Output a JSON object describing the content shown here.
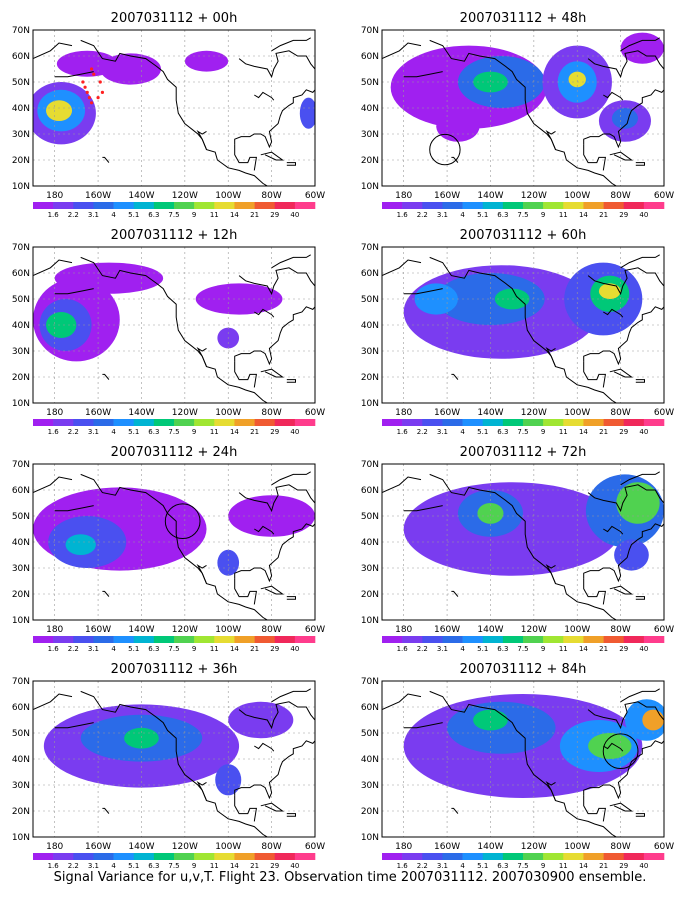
{
  "panels": [
    {
      "title": "2007031112 + 00h",
      "lead": "00h",
      "column": "left",
      "blobs": [
        {
          "lon": -177,
          "lat": 38,
          "rx": 16,
          "ry": 12,
          "level": 1
        },
        {
          "lon": -177,
          "lat": 39,
          "rx": 11,
          "ry": 8,
          "level": 4
        },
        {
          "lon": -178,
          "lat": 39,
          "rx": 6,
          "ry": 4,
          "level": 9
        },
        {
          "lon": -165,
          "lat": 57,
          "rx": 14,
          "ry": 5,
          "level": 0
        },
        {
          "lon": -145,
          "lat": 55,
          "rx": 14,
          "ry": 6,
          "level": 0
        },
        {
          "lon": -110,
          "lat": 58,
          "rx": 10,
          "ry": 4,
          "level": 0
        },
        {
          "lon": -63,
          "lat": 38,
          "rx": 4,
          "ry": 6,
          "level": 2
        }
      ],
      "target_points": [
        [
          -167,
          50
        ],
        [
          -166,
          48
        ],
        [
          -165,
          46
        ],
        [
          -164,
          44
        ],
        [
          -163,
          42
        ],
        [
          -160,
          44
        ],
        [
          -158,
          46
        ],
        [
          -159,
          50
        ],
        [
          -162,
          53
        ],
        [
          -163,
          55
        ]
      ],
      "circle": null
    },
    {
      "title": "2007031112 + 48h",
      "lead": "48h",
      "column": "right",
      "blobs": [
        {
          "lon": -150,
          "lat": 48,
          "rx": 36,
          "ry": 16,
          "level": 0
        },
        {
          "lon": -135,
          "lat": 50,
          "rx": 20,
          "ry": 10,
          "level": 3
        },
        {
          "lon": -140,
          "lat": 50,
          "rx": 8,
          "ry": 4,
          "level": 6
        },
        {
          "lon": -100,
          "lat": 50,
          "rx": 16,
          "ry": 14,
          "level": 1
        },
        {
          "lon": -100,
          "lat": 50,
          "rx": 9,
          "ry": 8,
          "level": 4
        },
        {
          "lon": -100,
          "lat": 51,
          "rx": 4,
          "ry": 3,
          "level": 9
        },
        {
          "lon": -155,
          "lat": 33,
          "rx": 10,
          "ry": 6,
          "level": 0
        },
        {
          "lon": -78,
          "lat": 35,
          "rx": 12,
          "ry": 8,
          "level": 1
        },
        {
          "lon": -78,
          "lat": 36,
          "rx": 6,
          "ry": 4,
          "level": 3
        },
        {
          "lon": -70,
          "lat": 63,
          "rx": 10,
          "ry": 6,
          "level": 0
        }
      ],
      "target_points": [],
      "circle": {
        "lon": -161,
        "lat": 24,
        "r": 7
      }
    },
    {
      "title": "2007031112 + 12h",
      "lead": "12h",
      "column": "left",
      "blobs": [
        {
          "lon": -170,
          "lat": 42,
          "rx": 20,
          "ry": 16,
          "level": 0
        },
        {
          "lon": -175,
          "lat": 40,
          "rx": 12,
          "ry": 10,
          "level": 2
        },
        {
          "lon": -177,
          "lat": 40,
          "rx": 7,
          "ry": 5,
          "level": 6
        },
        {
          "lon": -155,
          "lat": 58,
          "rx": 25,
          "ry": 6,
          "level": 0
        },
        {
          "lon": -95,
          "lat": 50,
          "rx": 20,
          "ry": 6,
          "level": 0
        },
        {
          "lon": -100,
          "lat": 35,
          "rx": 5,
          "ry": 4,
          "level": 1
        }
      ],
      "target_points": [],
      "circle": null
    },
    {
      "title": "2007031112 + 60h",
      "lead": "60h",
      "column": "right",
      "blobs": [
        {
          "lon": -135,
          "lat": 45,
          "rx": 45,
          "ry": 18,
          "level": 1
        },
        {
          "lon": -140,
          "lat": 50,
          "rx": 25,
          "ry": 10,
          "level": 3
        },
        {
          "lon": -130,
          "lat": 50,
          "rx": 8,
          "ry": 4,
          "level": 6
        },
        {
          "lon": -88,
          "lat": 50,
          "rx": 18,
          "ry": 14,
          "level": 2
        },
        {
          "lon": -85,
          "lat": 52,
          "rx": 9,
          "ry": 7,
          "level": 6
        },
        {
          "lon": -85,
          "lat": 53,
          "rx": 5,
          "ry": 3,
          "level": 9
        },
        {
          "lon": -165,
          "lat": 50,
          "rx": 10,
          "ry": 6,
          "level": 4
        }
      ],
      "target_points": [],
      "circle": null
    },
    {
      "title": "2007031112 + 24h",
      "lead": "24h",
      "column": "left",
      "blobs": [
        {
          "lon": -150,
          "lat": 45,
          "rx": 40,
          "ry": 16,
          "level": 0
        },
        {
          "lon": -165,
          "lat": 40,
          "rx": 18,
          "ry": 10,
          "level": 2
        },
        {
          "lon": -168,
          "lat": 39,
          "rx": 7,
          "ry": 4,
          "level": 5
        },
        {
          "lon": -80,
          "lat": 50,
          "rx": 20,
          "ry": 8,
          "level": 0
        },
        {
          "lon": -100,
          "lat": 32,
          "rx": 5,
          "ry": 5,
          "level": 2
        }
      ],
      "target_points": [],
      "circle": {
        "lon": -121,
        "lat": 48,
        "r": 8
      }
    },
    {
      "title": "2007031112 + 72h",
      "lead": "72h",
      "column": "right",
      "blobs": [
        {
          "lon": -130,
          "lat": 45,
          "rx": 50,
          "ry": 18,
          "level": 1
        },
        {
          "lon": -140,
          "lat": 51,
          "rx": 15,
          "ry": 9,
          "level": 3
        },
        {
          "lon": -140,
          "lat": 51,
          "rx": 6,
          "ry": 4,
          "level": 7
        },
        {
          "lon": -78,
          "lat": 52,
          "rx": 18,
          "ry": 14,
          "level": 3
        },
        {
          "lon": -72,
          "lat": 55,
          "rx": 10,
          "ry": 8,
          "level": 7
        },
        {
          "lon": -75,
          "lat": 35,
          "rx": 8,
          "ry": 6,
          "level": 2
        }
      ],
      "target_points": [],
      "circle": null
    },
    {
      "title": "2007031112 + 36h",
      "lead": "36h",
      "column": "left",
      "blobs": [
        {
          "lon": -140,
          "lat": 45,
          "rx": 45,
          "ry": 16,
          "level": 1
        },
        {
          "lon": -140,
          "lat": 48,
          "rx": 28,
          "ry": 9,
          "level": 3
        },
        {
          "lon": -140,
          "lat": 48,
          "rx": 8,
          "ry": 4,
          "level": 6
        },
        {
          "lon": -100,
          "lat": 32,
          "rx": 6,
          "ry": 6,
          "level": 2
        },
        {
          "lon": -85,
          "lat": 55,
          "rx": 15,
          "ry": 7,
          "level": 1
        }
      ],
      "target_points": [],
      "circle": null
    },
    {
      "title": "2007031112 + 84h",
      "lead": "84h",
      "column": "right",
      "blobs": [
        {
          "lon": -125,
          "lat": 45,
          "rx": 55,
          "ry": 20,
          "level": 1
        },
        {
          "lon": -135,
          "lat": 52,
          "rx": 25,
          "ry": 10,
          "level": 3
        },
        {
          "lon": -140,
          "lat": 55,
          "rx": 8,
          "ry": 4,
          "level": 6
        },
        {
          "lon": -90,
          "lat": 45,
          "rx": 18,
          "ry": 10,
          "level": 4
        },
        {
          "lon": -85,
          "lat": 45,
          "rx": 10,
          "ry": 5,
          "level": 7
        },
        {
          "lon": -68,
          "lat": 55,
          "rx": 10,
          "ry": 8,
          "level": 4
        },
        {
          "lon": -65,
          "lat": 55,
          "rx": 5,
          "ry": 4,
          "level": 10
        }
      ],
      "target_points": [],
      "circle": {
        "lon": -80,
        "lat": 43,
        "r": 8
      }
    }
  ],
  "map": {
    "lon_range": [
      -190,
      -60
    ],
    "lat_range": [
      10,
      70
    ],
    "lon_ticks": [
      {
        "v": -180,
        "label": "180"
      },
      {
        "v": -160,
        "label": "160W"
      },
      {
        "v": -140,
        "label": "140W"
      },
      {
        "v": -120,
        "label": "120W"
      },
      {
        "v": -100,
        "label": "100W"
      },
      {
        "v": -80,
        "label": "80W"
      },
      {
        "v": -60,
        "label": "60W"
      }
    ],
    "lat_ticks": [
      {
        "v": 10,
        "label": "10N"
      },
      {
        "v": 20,
        "label": "20N"
      },
      {
        "v": 30,
        "label": "30N"
      },
      {
        "v": 40,
        "label": "40N"
      },
      {
        "v": 50,
        "label": "50N"
      },
      {
        "v": 60,
        "label": "60N"
      },
      {
        "v": 70,
        "label": "70N"
      }
    ],
    "grid": true
  },
  "colorbar": {
    "labels": [
      "1.6",
      "2.2",
      "3.1",
      "4",
      "5.1",
      "6.3",
      "7.5",
      "9",
      "11",
      "14",
      "21",
      "29",
      "40"
    ],
    "colors": [
      "#a020f0",
      "#7a3cf0",
      "#4a50f0",
      "#2b6be8",
      "#1e90ff",
      "#00b4d2",
      "#00c878",
      "#50d250",
      "#a0e632",
      "#e6dc32",
      "#f0a028",
      "#f05a32",
      "#f0285a",
      "#ff3c8c"
    ]
  },
  "caption": "Signal Variance for u,v,T. Flight 23. Observation time 2007031112. 2007030900 ensemble.",
  "colors": {
    "target_points": "#ff2020",
    "coast": "#000000",
    "circle": "#000000"
  }
}
